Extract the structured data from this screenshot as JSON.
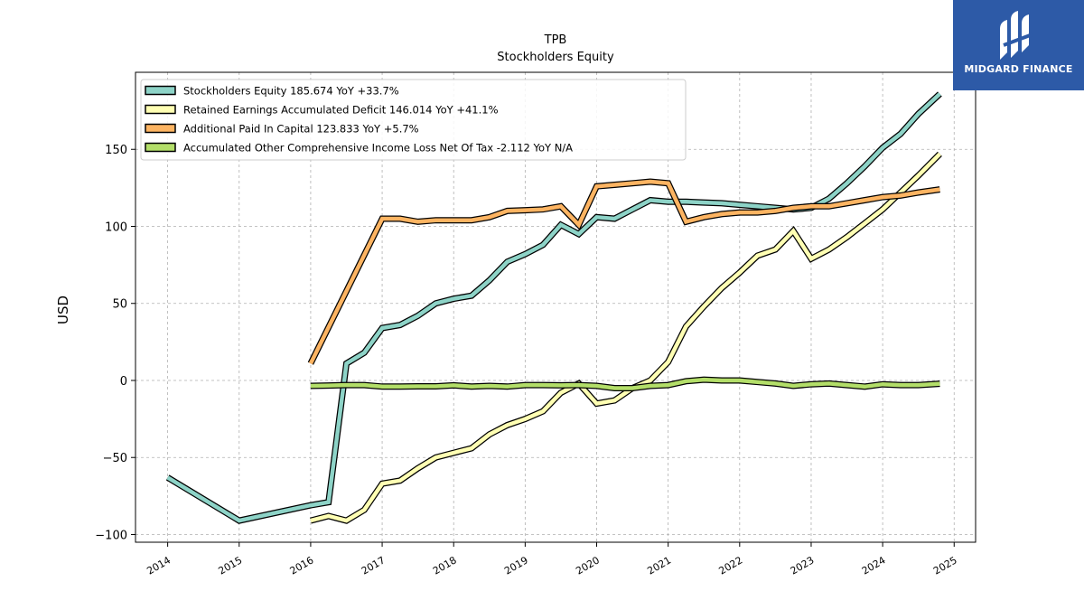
{
  "brand": {
    "name": "MIDGARD FINANCE",
    "bg_color": "#2d5aa7",
    "icon": "midgard-logo-icon"
  },
  "chart_data": {
    "type": "line",
    "title": "TPB",
    "subtitle": "Stockholders  Equity",
    "ylabel": "USD",
    "xlabel": "",
    "xlim": [
      2013.55,
      2025.3
    ],
    "ylim": [
      -105,
      200
    ],
    "yticks": [
      -100,
      -50,
      0,
      50,
      100,
      150
    ],
    "ytick_labels": [
      "−100",
      "−50",
      "0",
      "50",
      "100",
      "150"
    ],
    "xticks": [
      2014,
      2015,
      2016,
      2017,
      2018,
      2019,
      2020,
      2021,
      2022,
      2023,
      2024,
      2025
    ],
    "xtick_labels": [
      "2014",
      "2015",
      "2016",
      "2017",
      "2018",
      "2019",
      "2020",
      "2021",
      "2022",
      "2023",
      "2024",
      "2025"
    ],
    "grid": true,
    "legend_position": "top-left",
    "series": [
      {
        "name": "Stockholders Equity  185.674 YoY +33.7%",
        "color": "#8dd3c7",
        "points": [
          [
            2014.0,
            -63
          ],
          [
            2015.0,
            -91
          ],
          [
            2016.0,
            -81
          ],
          [
            2016.25,
            -79
          ],
          [
            2016.5,
            11
          ],
          [
            2016.75,
            18
          ],
          [
            2017.0,
            34
          ],
          [
            2017.25,
            36
          ],
          [
            2017.5,
            42
          ],
          [
            2017.75,
            50
          ],
          [
            2018.0,
            53
          ],
          [
            2018.25,
            55
          ],
          [
            2018.5,
            65
          ],
          [
            2018.75,
            77
          ],
          [
            2019.0,
            82
          ],
          [
            2019.25,
            88
          ],
          [
            2019.5,
            101
          ],
          [
            2019.75,
            95
          ],
          [
            2020.0,
            106
          ],
          [
            2020.25,
            105
          ],
          [
            2020.5,
            111
          ],
          [
            2020.75,
            117
          ],
          [
            2021.0,
            116
          ],
          [
            2021.25,
            116
          ],
          [
            2021.5,
            115.5
          ],
          [
            2021.75,
            115
          ],
          [
            2022.0,
            114
          ],
          [
            2022.25,
            113
          ],
          [
            2022.5,
            112
          ],
          [
            2022.75,
            111
          ],
          [
            2023.0,
            112
          ],
          [
            2023.25,
            118
          ],
          [
            2023.5,
            128
          ],
          [
            2023.75,
            139
          ],
          [
            2024.0,
            151
          ],
          [
            2024.25,
            160
          ],
          [
            2024.5,
            173
          ],
          [
            2024.8,
            186
          ]
        ]
      },
      {
        "name": "Retained Earnings Accumulated Deficit  146.014 YoY +41.1%",
        "color": "#ffffb3",
        "points": [
          [
            2016.0,
            -91
          ],
          [
            2016.25,
            -88
          ],
          [
            2016.5,
            -91
          ],
          [
            2016.75,
            -84
          ],
          [
            2017.0,
            -67
          ],
          [
            2017.25,
            -65
          ],
          [
            2017.5,
            -57
          ],
          [
            2017.75,
            -50
          ],
          [
            2018.0,
            -47
          ],
          [
            2018.25,
            -44
          ],
          [
            2018.5,
            -35
          ],
          [
            2018.75,
            -29
          ],
          [
            2019.0,
            -25
          ],
          [
            2019.25,
            -20
          ],
          [
            2019.5,
            -8
          ],
          [
            2019.75,
            -2
          ],
          [
            2020.0,
            -15
          ],
          [
            2020.25,
            -13
          ],
          [
            2020.5,
            -5
          ],
          [
            2020.75,
            0
          ],
          [
            2021.0,
            12
          ],
          [
            2021.25,
            35
          ],
          [
            2021.5,
            48
          ],
          [
            2021.75,
            60
          ],
          [
            2022.0,
            70
          ],
          [
            2022.25,
            81
          ],
          [
            2022.5,
            85
          ],
          [
            2022.75,
            97
          ],
          [
            2023.0,
            79
          ],
          [
            2023.25,
            85
          ],
          [
            2023.5,
            93
          ],
          [
            2023.75,
            102
          ],
          [
            2024.0,
            111
          ],
          [
            2024.25,
            122
          ],
          [
            2024.5,
            133
          ],
          [
            2024.8,
            147
          ]
        ]
      },
      {
        "name": "Additional Paid In Capital  123.833 YoY +5.7%",
        "color": "#fdb462",
        "points": [
          [
            2016.0,
            11
          ],
          [
            2017.0,
            105
          ],
          [
            2017.25,
            105
          ],
          [
            2017.5,
            103
          ],
          [
            2017.75,
            104
          ],
          [
            2018.0,
            104
          ],
          [
            2018.25,
            104
          ],
          [
            2018.5,
            106
          ],
          [
            2018.75,
            110
          ],
          [
            2019.0,
            110.5
          ],
          [
            2019.25,
            111
          ],
          [
            2019.5,
            113
          ],
          [
            2019.75,
            101
          ],
          [
            2020.0,
            126
          ],
          [
            2020.25,
            127
          ],
          [
            2020.5,
            128
          ],
          [
            2020.75,
            129
          ],
          [
            2021.0,
            128
          ],
          [
            2021.25,
            103
          ],
          [
            2021.5,
            106
          ],
          [
            2021.75,
            108
          ],
          [
            2022.0,
            109
          ],
          [
            2022.25,
            109
          ],
          [
            2022.5,
            110
          ],
          [
            2022.75,
            112
          ],
          [
            2023.0,
            113
          ],
          [
            2023.25,
            113
          ],
          [
            2023.5,
            115
          ],
          [
            2023.75,
            117
          ],
          [
            2024.0,
            119
          ],
          [
            2024.25,
            120
          ],
          [
            2024.5,
            122
          ],
          [
            2024.8,
            124
          ]
        ]
      },
      {
        "name": "Accumulated Other Comprehensive Income Loss Net Of Tax  -2.112 YoY N/A",
        "color": "#b3de69",
        "points": [
          [
            2016.0,
            -3.5
          ],
          [
            2016.25,
            -3.3
          ],
          [
            2016.5,
            -3.0
          ],
          [
            2016.75,
            -3.0
          ],
          [
            2017.0,
            -4.0
          ],
          [
            2017.25,
            -4.0
          ],
          [
            2017.5,
            -3.8
          ],
          [
            2017.75,
            -3.8
          ],
          [
            2018.0,
            -3.2
          ],
          [
            2018.25,
            -4.0
          ],
          [
            2018.5,
            -3.5
          ],
          [
            2018.75,
            -4.0
          ],
          [
            2019.0,
            -3.0
          ],
          [
            2019.25,
            -3.0
          ],
          [
            2019.5,
            -3.2
          ],
          [
            2019.75,
            -3.0
          ],
          [
            2020.0,
            -3.5
          ],
          [
            2020.25,
            -5.0
          ],
          [
            2020.5,
            -5.0
          ],
          [
            2020.75,
            -3.5
          ],
          [
            2021.0,
            -3.0
          ],
          [
            2021.25,
            -0.5
          ],
          [
            2021.5,
            0.5
          ],
          [
            2021.75,
            0.0
          ],
          [
            2022.0,
            0.0
          ],
          [
            2022.25,
            -1.0
          ],
          [
            2022.5,
            -2.0
          ],
          [
            2022.75,
            -3.5
          ],
          [
            2023.0,
            -2.5
          ],
          [
            2023.25,
            -2.0
          ],
          [
            2023.5,
            -3.0
          ],
          [
            2023.75,
            -4.0
          ],
          [
            2024.0,
            -2.5
          ],
          [
            2024.25,
            -3.0
          ],
          [
            2024.5,
            -3.0
          ],
          [
            2024.8,
            -2.1
          ]
        ]
      }
    ]
  }
}
